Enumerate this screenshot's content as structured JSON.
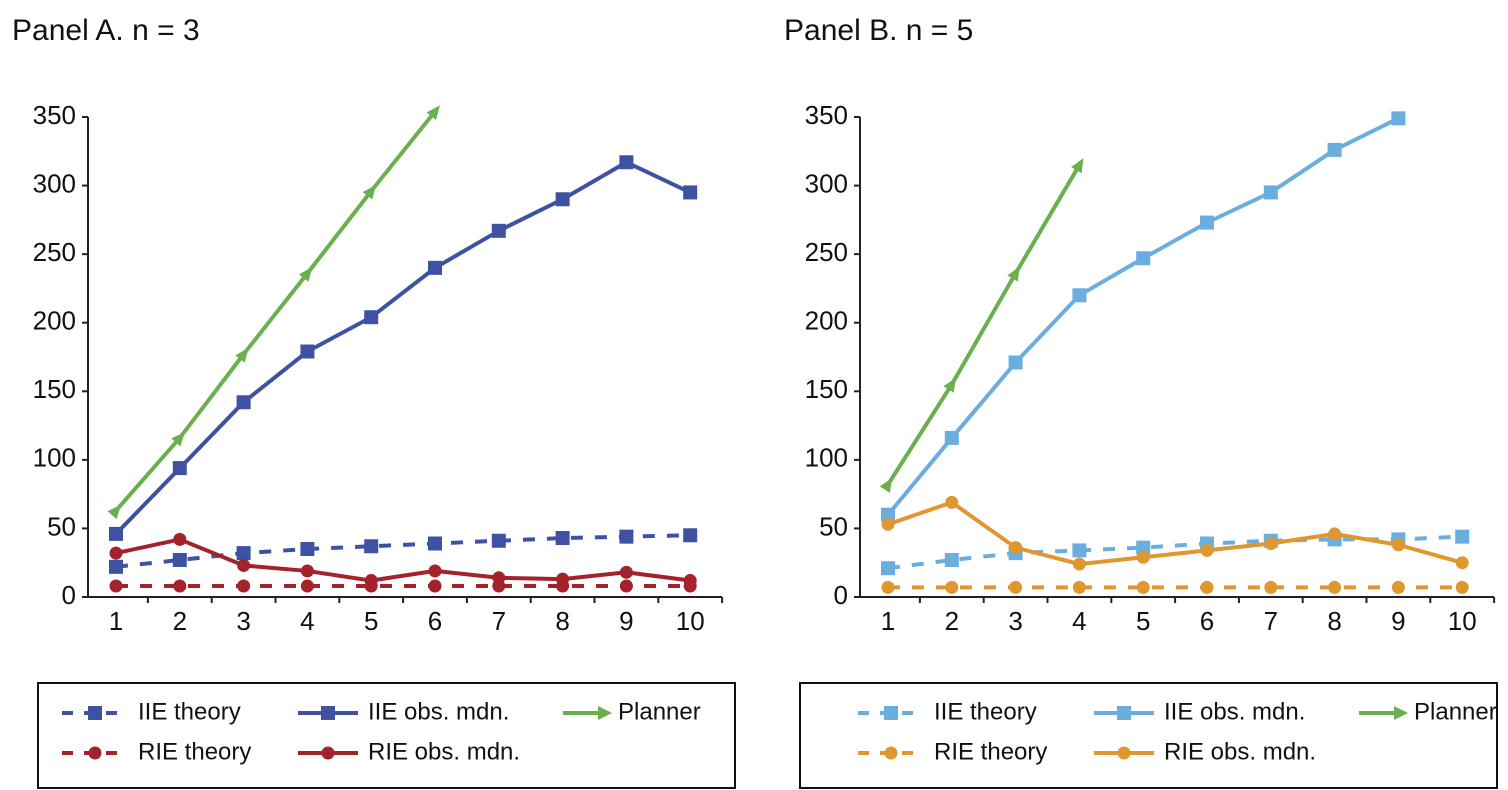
{
  "chart_data": [
    {
      "type": "line",
      "title": "Panel A. n = 3",
      "categories": [
        "1",
        "2",
        "3",
        "4",
        "5",
        "6",
        "7",
        "8",
        "9",
        "10"
      ],
      "ylim": [
        0,
        350
      ],
      "yticks": [
        0,
        50,
        100,
        150,
        200,
        250,
        300,
        350
      ],
      "series": [
        {
          "name": "IIE theory",
          "color": "#3f51a3",
          "dashed": true,
          "marker": "square",
          "values": [
            22,
            27,
            32,
            35,
            37,
            39,
            41,
            43,
            44,
            45
          ]
        },
        {
          "name": "IIE obs. mdn.",
          "color": "#3f51a3",
          "dashed": false,
          "marker": "square",
          "values": [
            46,
            94,
            142,
            179,
            204,
            240,
            267,
            290,
            317,
            295
          ]
        },
        {
          "name": "Planner",
          "color": "#6ab04c",
          "dashed": false,
          "marker": "arrow",
          "values": [
            63,
            116,
            177,
            236,
            296,
            354,
            null,
            null,
            null,
            null
          ]
        },
        {
          "name": "RIE theory",
          "color": "#a3222b",
          "dashed": true,
          "marker": "circle",
          "values": [
            8,
            8,
            8,
            8,
            8,
            8,
            8,
            8,
            8,
            8
          ]
        },
        {
          "name": "RIE obs. mdn.",
          "color": "#a3222b",
          "dashed": false,
          "marker": "circle",
          "values": [
            32,
            42,
            23,
            19,
            12,
            19,
            14,
            13,
            18,
            12
          ]
        }
      ]
    },
    {
      "type": "line",
      "title": "Panel B. n = 5",
      "categories": [
        "1",
        "2",
        "3",
        "4",
        "5",
        "6",
        "7",
        "8",
        "9",
        "10"
      ],
      "ylim": [
        0,
        350
      ],
      "yticks": [
        0,
        50,
        100,
        150,
        200,
        250,
        300,
        350
      ],
      "series": [
        {
          "name": "IIE theory",
          "color": "#6aaee0",
          "dashed": true,
          "marker": "square",
          "values": [
            21,
            27,
            32,
            34,
            36,
            39,
            41,
            42,
            42,
            44
          ]
        },
        {
          "name": "IIE obs. mdn.",
          "color": "#6aaee0",
          "dashed": false,
          "marker": "square",
          "values": [
            60,
            116,
            171,
            220,
            247,
            273,
            295,
            326,
            349,
            null
          ]
        },
        {
          "name": "Planner",
          "color": "#6ab04c",
          "dashed": false,
          "marker": "arrow",
          "values": [
            82,
            155,
            236,
            315,
            null,
            null,
            null,
            null,
            null,
            null
          ]
        },
        {
          "name": "RIE theory",
          "color": "#e0972f",
          "dashed": true,
          "marker": "circle",
          "values": [
            7,
            7,
            7,
            7,
            7,
            7,
            7,
            7,
            7,
            7
          ]
        },
        {
          "name": "RIE obs. mdn.",
          "color": "#e0972f",
          "dashed": false,
          "marker": "circle",
          "values": [
            53,
            69,
            36,
            24,
            29,
            34,
            39,
            46,
            38,
            25
          ]
        }
      ]
    }
  ]
}
